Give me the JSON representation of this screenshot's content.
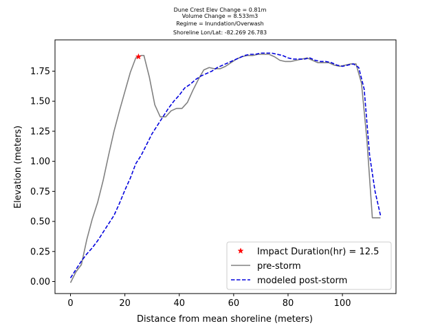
{
  "chart_data": {
    "type": "line",
    "title_lines": [
      "Dune Crest Elev Change = 0.81m",
      "Volume Change = 8.533m3",
      "Regime = Inundation/Overwash",
      "Shoreline Lon/Lat: -82.269 26.783"
    ],
    "xlabel": "Distance from mean shoreline (meters)",
    "ylabel": "Elevation (meters)",
    "xlim": [
      -5.7,
      119.7
    ],
    "ylim": [
      -0.1,
      2.01
    ],
    "xticks": [
      0,
      20,
      40,
      60,
      80,
      100
    ],
    "xtick_labels": [
      "0",
      "20",
      "40",
      "60",
      "80",
      "100"
    ],
    "yticks": [
      0.0,
      0.25,
      0.5,
      0.75,
      1.0,
      1.25,
      1.5,
      1.75
    ],
    "ytick_labels": [
      "0.00",
      "0.25",
      "0.50",
      "0.75",
      "1.00",
      "1.25",
      "1.50",
      "1.75"
    ],
    "legend_position": "lower-right",
    "legend_entries": [
      "Impact Duration(hr) = 12.5",
      "pre-storm",
      "modeled post-storm"
    ],
    "marker": {
      "x": 25,
      "y": 1.87,
      "color": "#ff0000",
      "symbol": "star"
    },
    "series": [
      {
        "name": "pre-storm",
        "color": "#808080",
        "style": "solid",
        "x": [
          0,
          2,
          4,
          6,
          8,
          10,
          12,
          14,
          16,
          18,
          20,
          22,
          24,
          26,
          27,
          29,
          31,
          33,
          35,
          37,
          39,
          41,
          43,
          45,
          47,
          49,
          51,
          53,
          55,
          57,
          59,
          61,
          63,
          65,
          67,
          69,
          71,
          73,
          75,
          77,
          79,
          81,
          83,
          85,
          87,
          89,
          91,
          93,
          95,
          97,
          99,
          101,
          103,
          105,
          107,
          109,
          111,
          113,
          114
        ],
        "y": [
          -0.01,
          0.08,
          0.14,
          0.35,
          0.52,
          0.66,
          0.84,
          1.05,
          1.25,
          1.42,
          1.58,
          1.74,
          1.86,
          1.88,
          1.88,
          1.7,
          1.47,
          1.37,
          1.37,
          1.42,
          1.44,
          1.44,
          1.49,
          1.59,
          1.68,
          1.76,
          1.78,
          1.77,
          1.77,
          1.79,
          1.82,
          1.85,
          1.87,
          1.88,
          1.88,
          1.89,
          1.89,
          1.89,
          1.87,
          1.84,
          1.83,
          1.83,
          1.84,
          1.85,
          1.86,
          1.84,
          1.82,
          1.82,
          1.82,
          1.8,
          1.79,
          1.8,
          1.81,
          1.81,
          1.65,
          1.18,
          0.53,
          0.53,
          0.53
        ]
      },
      {
        "name": "modeled post-storm",
        "color": "#0000dd",
        "style": "dashed",
        "x": [
          0,
          2,
          4,
          6,
          8,
          10,
          12,
          14,
          16,
          18,
          20,
          22,
          24,
          26,
          28,
          30,
          32,
          34,
          36,
          38,
          40,
          42,
          44,
          46,
          48,
          50,
          52,
          54,
          56,
          58,
          60,
          62,
          64,
          66,
          68,
          70,
          72,
          74,
          76,
          78,
          80,
          82,
          84,
          86,
          88,
          90,
          92,
          94,
          96,
          98,
          100,
          102,
          104,
          106,
          108,
          110,
          112,
          114
        ],
        "y": [
          0.03,
          0.1,
          0.17,
          0.23,
          0.28,
          0.34,
          0.41,
          0.48,
          0.55,
          0.65,
          0.76,
          0.86,
          0.98,
          1.05,
          1.14,
          1.23,
          1.3,
          1.37,
          1.44,
          1.5,
          1.55,
          1.61,
          1.64,
          1.68,
          1.71,
          1.73,
          1.75,
          1.78,
          1.8,
          1.82,
          1.84,
          1.86,
          1.88,
          1.89,
          1.89,
          1.9,
          1.9,
          1.9,
          1.89,
          1.88,
          1.86,
          1.85,
          1.85,
          1.85,
          1.86,
          1.84,
          1.83,
          1.83,
          1.82,
          1.8,
          1.79,
          1.8,
          1.81,
          1.78,
          1.6,
          1.05,
          0.75,
          0.55
        ]
      }
    ]
  }
}
